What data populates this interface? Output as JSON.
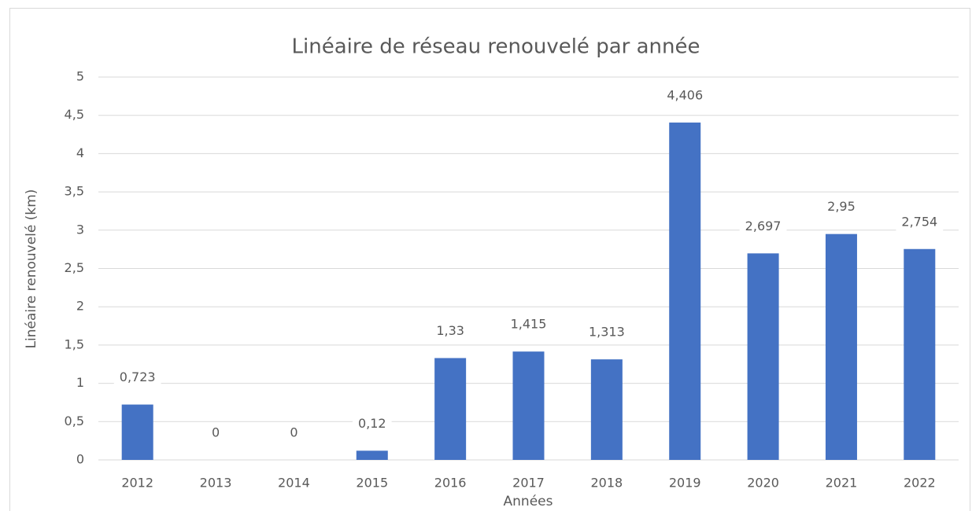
{
  "chart_data": {
    "type": "bar",
    "title": "Linéaire de réseau renouvelé par année",
    "x_label": "Années",
    "y_label": "Linéaire renouvelé (km)",
    "categories": [
      "2012",
      "2013",
      "2014",
      "2015",
      "2016",
      "2017",
      "2018",
      "2019",
      "2020",
      "2021",
      "2022"
    ],
    "values": [
      0.723,
      0,
      0,
      0.12,
      1.33,
      1.415,
      1.313,
      4.406,
      2.697,
      2.95,
      2.754
    ],
    "value_labels": [
      "0,723",
      "0",
      "0",
      "0,12",
      "1,33",
      "1,415",
      "1,313",
      "4,406",
      "2,697",
      "2,95",
      "2,754"
    ],
    "color": "#4472c4",
    "ylim": [
      0,
      5
    ],
    "yticks": [
      0,
      {
        "value": 0.5,
        "label": "0,5"
      },
      1,
      {
        "value": 1.5,
        "label": "1,5"
      },
      2,
      {
        "value": 2.5,
        "label": "2,5"
      },
      3,
      {
        "value": 3.5,
        "label": "3,5"
      },
      4,
      {
        "value": 4.5,
        "label": "4,5"
      },
      5
    ],
    "grid": true
  }
}
